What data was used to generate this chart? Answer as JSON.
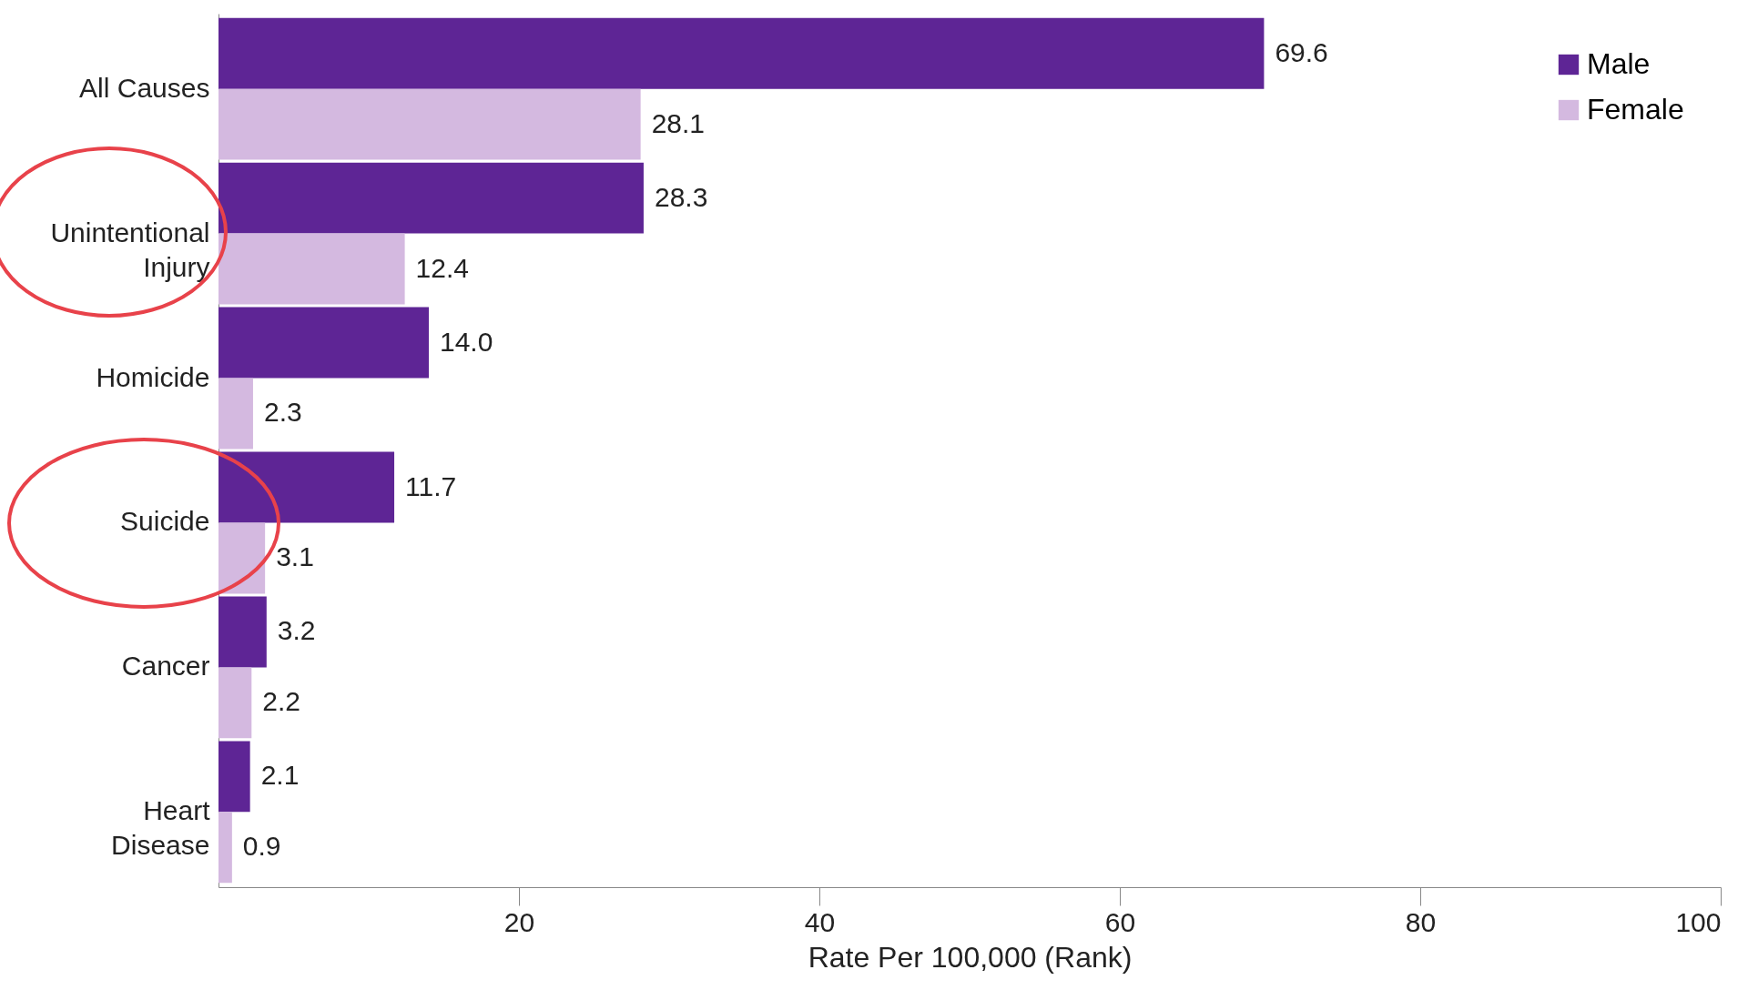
{
  "chart_data": {
    "type": "bar",
    "orientation": "horizontal",
    "xlabel": "Rate Per 100,000  (Rank)",
    "categories": [
      "All Causes",
      "Unintentional Injury",
      "Homicide",
      "Suicide",
      "Cancer",
      "Heart Disease"
    ],
    "series": [
      {
        "name": "Male",
        "color": "#5e2595",
        "values": [
          69.6,
          28.3,
          14.0,
          11.7,
          3.2,
          2.1
        ],
        "value_labels": [
          "69.6",
          "28.3",
          "14.0",
          "11.7",
          "3.2",
          "2.1"
        ]
      },
      {
        "name": "Female",
        "color": "#d4b9e0",
        "values": [
          28.1,
          12.4,
          2.3,
          3.1,
          2.2,
          0.9
        ],
        "value_labels": [
          "28.1",
          "12.4",
          "2.3",
          "3.1",
          "2.2",
          "0.9"
        ]
      }
    ],
    "xlim": [
      0,
      100
    ],
    "xticks": [
      20,
      40,
      60,
      80,
      100
    ],
    "grid": false,
    "legend": "top right"
  }
}
